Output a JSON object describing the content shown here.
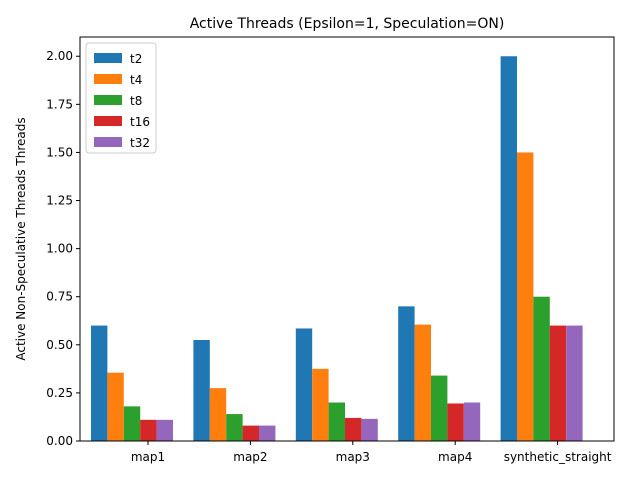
{
  "chart_data": {
    "type": "bar",
    "title": "Active Threads (Epsilon=1, Speculation=ON)",
    "xlabel": "",
    "ylabel": "Active Non-Speculative Threads Threads",
    "categories": [
      "map1",
      "map2",
      "map3",
      "map4",
      "synthetic_straight"
    ],
    "series": [
      {
        "name": "t2",
        "color": "#1f77b4",
        "values": [
          0.6,
          0.525,
          0.585,
          0.7,
          2.0
        ]
      },
      {
        "name": "t4",
        "color": "#ff7f0e",
        "values": [
          0.355,
          0.275,
          0.375,
          0.605,
          1.5
        ]
      },
      {
        "name": "t8",
        "color": "#2ca02c",
        "values": [
          0.18,
          0.14,
          0.2,
          0.34,
          0.75
        ]
      },
      {
        "name": "t16",
        "color": "#d62728",
        "values": [
          0.11,
          0.08,
          0.12,
          0.195,
          0.6
        ]
      },
      {
        "name": "t32",
        "color": "#9467bd",
        "values": [
          0.11,
          0.08,
          0.115,
          0.2,
          0.6
        ]
      }
    ],
    "ylim": [
      0,
      2.1
    ],
    "yticks": [
      "0.00",
      "0.25",
      "0.50",
      "0.75",
      "1.00",
      "1.25",
      "1.50",
      "1.75",
      "2.00"
    ],
    "grid": false,
    "legend_position": "upper-left"
  }
}
